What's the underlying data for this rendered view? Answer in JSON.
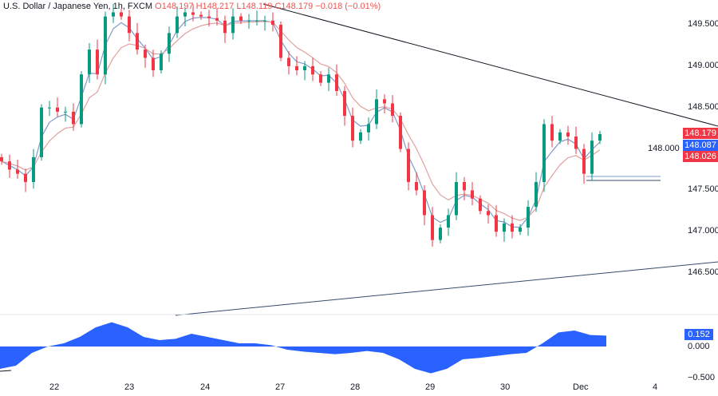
{
  "legend": {
    "symbol": "U.S. Dollar / Japanese Yen, 1h, FXCM",
    "open": "O148.197",
    "high": "H148.217",
    "low": "L148.119",
    "close": "C148.179",
    "change": "−0.018 (−0.01%)"
  },
  "colors": {
    "up": "#089981",
    "down": "#f23645",
    "ema_fast": "#7e9bc7",
    "ema_slow": "#e0a0a0",
    "osc": "#2962ff",
    "trend": "#131722"
  },
  "price_tags": [
    {
      "value": "148.179",
      "color": "#f23645"
    },
    {
      "value": "148.087",
      "color": "#2962ff"
    },
    {
      "value": "148.026",
      "color": "#f23645"
    }
  ],
  "osc_tag": {
    "value": "0.152",
    "color": "#2962ff"
  },
  "chart_data": [
    {
      "type": "candlestick",
      "ylim": [
        146.0,
        149.8
      ],
      "y_ticks": [
        "149.500",
        "149.000",
        "148.500",
        "148.000",
        "147.500",
        "147.000",
        "146.500"
      ],
      "x_ticks": [
        "22",
        "23",
        "24",
        "27",
        "28",
        "29",
        "30",
        "Dec",
        "4"
      ],
      "closes": [
        147.85,
        147.75,
        147.7,
        147.6,
        147.9,
        148.5,
        148.5,
        148.45,
        148.45,
        148.3,
        148.9,
        149.2,
        148.9,
        149.6,
        149.65,
        149.6,
        149.4,
        149.2,
        149.1,
        148.95,
        149.15,
        149.4,
        149.6,
        149.65,
        149.62,
        149.6,
        149.58,
        149.55,
        149.4,
        149.6,
        149.55,
        149.55,
        149.55,
        149.55,
        149.5,
        149.1,
        149.0,
        148.95,
        149.0,
        148.9,
        148.8,
        148.9,
        148.7,
        148.4,
        148.1,
        148.2,
        148.3,
        148.6,
        148.55,
        148.4,
        148.0,
        147.6,
        147.5,
        147.2,
        146.9,
        147.05,
        147.2,
        147.6,
        147.5,
        147.4,
        147.25,
        147.2,
        147.0,
        147.1,
        147.0,
        147.05,
        147.3,
        147.6,
        148.3,
        148.1,
        148.2,
        148.15,
        148.0,
        147.7,
        148.1,
        148.18
      ]
    },
    {
      "type": "area",
      "name": "oscillator",
      "y_ticks": [
        "0.000",
        "−0.500"
      ],
      "values": [
        -0.35,
        -0.3,
        -0.1,
        0.0,
        0.05,
        0.15,
        0.3,
        0.38,
        0.3,
        0.15,
        0.1,
        0.12,
        0.2,
        0.15,
        0.1,
        0.05,
        0.05,
        0.02,
        -0.05,
        -0.08,
        -0.1,
        -0.12,
        -0.1,
        -0.07,
        -0.1,
        -0.2,
        -0.35,
        -0.42,
        -0.35,
        -0.2,
        -0.18,
        -0.15,
        -0.12,
        -0.1,
        0.05,
        0.22,
        0.25,
        0.18,
        0.17
      ]
    }
  ]
}
